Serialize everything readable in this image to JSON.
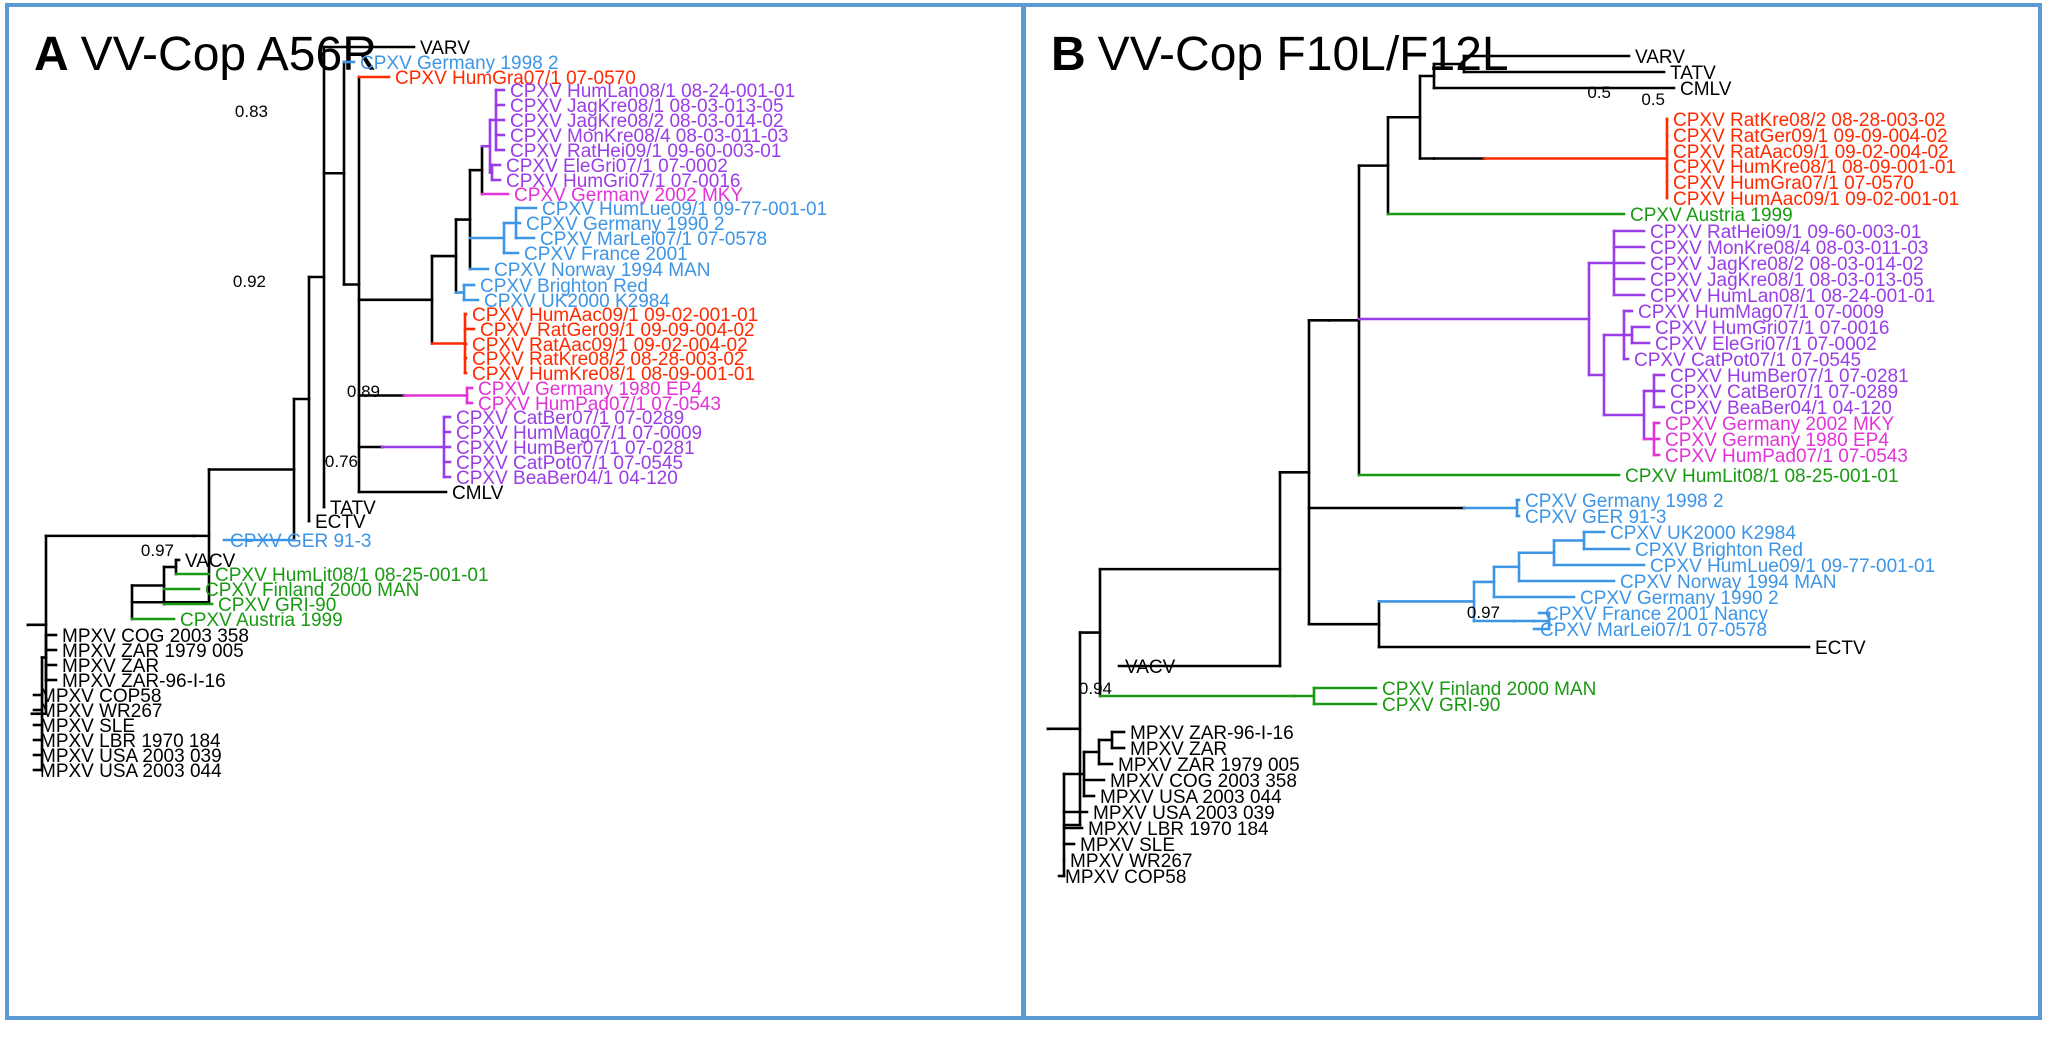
{
  "colors": {
    "black": "#000000",
    "red": "#ff2a00",
    "purple": "#9b3de6",
    "magenta": "#e233d8",
    "blue": "#3d95e6",
    "green": "#1a9a13",
    "frame": "#5b9bd5"
  },
  "panel_a": {
    "letter": "A",
    "title": "VV-Cop A56R",
    "leaves": [
      {
        "label": "VARV",
        "color": "black"
      },
      {
        "label": "CPXV Germany 1998 2",
        "color": "blue"
      },
      {
        "label": "CPXV HumGra07/1 07-0570",
        "color": "red"
      },
      {
        "label": "CPXV HumLan08/1 08-24-001-01",
        "color": "purple"
      },
      {
        "label": "CPXV JagKre08/1 08-03-013-05",
        "color": "purple"
      },
      {
        "label": "CPXV JagKre08/2 08-03-014-02",
        "color": "purple"
      },
      {
        "label": "CPXV MonKre08/4 08-03-011-03",
        "color": "purple"
      },
      {
        "label": "CPXV RatHei09/1 09-60-003-01",
        "color": "purple"
      },
      {
        "label": "CPXV EleGri07/1 07-0002",
        "color": "purple"
      },
      {
        "label": "CPXV HumGri07/1 07-0016",
        "color": "purple"
      },
      {
        "label": "CPXV Germany 2002 MKY",
        "color": "magenta"
      },
      {
        "label": "CPXV HumLue09/1 09-77-001-01",
        "color": "blue"
      },
      {
        "label": "CPXV Germany 1990 2",
        "color": "blue"
      },
      {
        "label": "CPXV MarLei07/1 07-0578",
        "color": "blue"
      },
      {
        "label": "CPXV France 2001",
        "color": "blue"
      },
      {
        "label": "CPXV Norway 1994 MAN",
        "color": "blue"
      },
      {
        "label": "CPXV Brighton Red",
        "color": "blue"
      },
      {
        "label": "CPXV UK2000 K2984",
        "color": "blue"
      },
      {
        "label": "CPXV HumAac09/1 09-02-001-01",
        "color": "red"
      },
      {
        "label": "CPXV RatGer09/1 09-09-004-02",
        "color": "red"
      },
      {
        "label": "CPXV RatAac09/1 09-02-004-02",
        "color": "red"
      },
      {
        "label": "CPXV RatKre08/2 08-28-003-02",
        "color": "red"
      },
      {
        "label": "CPXV HumKre08/1 08-09-001-01",
        "color": "red"
      },
      {
        "label": "CPXV Germany 1980 EP4",
        "color": "magenta"
      },
      {
        "label": "CPXV HumPad07/1 07-0543",
        "color": "magenta"
      },
      {
        "label": "CPXV CatBer07/1 07-0289",
        "color": "purple"
      },
      {
        "label": "CPXV HumMag07/1 07-0009",
        "color": "purple"
      },
      {
        "label": "CPXV HumBer07/1 07-0281",
        "color": "purple"
      },
      {
        "label": "CPXV CatPot07/1 07-0545",
        "color": "purple"
      },
      {
        "label": "CPXV BeaBer04/1 04-120",
        "color": "purple"
      },
      {
        "label": "CMLV",
        "color": "black"
      },
      {
        "label": "TATV",
        "color": "black"
      },
      {
        "label": "ECTV",
        "color": "black"
      },
      {
        "label": "CPXV GER 91-3",
        "color": "blue"
      },
      {
        "label": "VACV",
        "color": "black"
      },
      {
        "label": "CPXV HumLit08/1 08-25-001-01",
        "color": "green"
      },
      {
        "label": "CPXV Finland 2000 MAN",
        "color": "green"
      },
      {
        "label": "CPXV GRI-90",
        "color": "green"
      },
      {
        "label": "CPXV Austria 1999",
        "color": "green"
      },
      {
        "label": "MPXV COG 2003 358",
        "color": "black"
      },
      {
        "label": "MPXV ZAR 1979 005",
        "color": "black"
      },
      {
        "label": "MPXV ZAR",
        "color": "black"
      },
      {
        "label": "MPXV ZAR-96-I-16",
        "color": "black"
      },
      {
        "label": "MPXV COP58",
        "color": "black"
      },
      {
        "label": "MPXV WR267",
        "color": "black"
      },
      {
        "label": "MPXV SLE",
        "color": "black"
      },
      {
        "label": "MPXV LBR 1970 184",
        "color": "black"
      },
      {
        "label": "MPXV USA 2003 039",
        "color": "black"
      },
      {
        "label": "MPXV USA 2003 044",
        "color": "black"
      }
    ],
    "support_values": [
      "0.83",
      "0.92",
      "0.89",
      "0.76",
      "0.97"
    ]
  },
  "panel_b": {
    "letter": "B",
    "title": "VV-Cop F10L/F12L",
    "leaves": [
      {
        "label": "VARV",
        "color": "black"
      },
      {
        "label": "TATV",
        "color": "black"
      },
      {
        "label": "CMLV",
        "color": "black"
      },
      {
        "label": "CPXV RatKre08/2 08-28-003-02",
        "color": "red"
      },
      {
        "label": "CPXV RatGer09/1 09-09-004-02",
        "color": "red"
      },
      {
        "label": "CPXV RatAac09/1 09-02-004-02",
        "color": "red"
      },
      {
        "label": "CPXV HumKre08/1 08-09-001-01",
        "color": "red"
      },
      {
        "label": "CPXV HumGra07/1 07-0570",
        "color": "red"
      },
      {
        "label": "CPXV HumAac09/1 09-02-001-01",
        "color": "red"
      },
      {
        "label": "CPXV Austria 1999",
        "color": "green"
      },
      {
        "label": "CPXV RatHei09/1 09-60-003-01",
        "color": "purple"
      },
      {
        "label": "CPXV MonKre08/4 08-03-011-03",
        "color": "purple"
      },
      {
        "label": "CPXV JagKre08/2 08-03-014-02",
        "color": "purple"
      },
      {
        "label": "CPXV JagKre08/1 08-03-013-05",
        "color": "purple"
      },
      {
        "label": "CPXV HumLan08/1 08-24-001-01",
        "color": "purple"
      },
      {
        "label": "CPXV HumMag07/1 07-0009",
        "color": "purple"
      },
      {
        "label": "CPXV HumGri07/1 07-0016",
        "color": "purple"
      },
      {
        "label": "CPXV EleGri07/1 07-0002",
        "color": "purple"
      },
      {
        "label": "CPXV CatPot07/1 07-0545",
        "color": "purple"
      },
      {
        "label": "CPXV HumBer07/1 07-0281",
        "color": "purple"
      },
      {
        "label": "CPXV CatBer07/1 07-0289",
        "color": "purple"
      },
      {
        "label": "CPXV BeaBer04/1 04-120",
        "color": "purple"
      },
      {
        "label": "CPXV Germany 2002 MKY",
        "color": "magenta"
      },
      {
        "label": "CPXV Germany 1980 EP4",
        "color": "magenta"
      },
      {
        "label": "CPXV HumPad07/1 07-0543",
        "color": "magenta"
      },
      {
        "label": "CPXV HumLit08/1 08-25-001-01",
        "color": "green"
      },
      {
        "label": "CPXV Germany 1998 2",
        "color": "blue"
      },
      {
        "label": "CPXV GER 91-3",
        "color": "blue"
      },
      {
        "label": "CPXV UK2000 K2984",
        "color": "blue"
      },
      {
        "label": "CPXV Brighton Red",
        "color": "blue"
      },
      {
        "label": "CPXV HumLue09/1 09-77-001-01",
        "color": "blue"
      },
      {
        "label": "CPXV Norway 1994 MAN",
        "color": "blue"
      },
      {
        "label": "CPXV Germany 1990 2",
        "color": "blue"
      },
      {
        "label": "CPXV France 2001 Nancy",
        "color": "blue"
      },
      {
        "label": "CPXV MarLei07/1 07-0578",
        "color": "blue"
      },
      {
        "label": "ECTV",
        "color": "black"
      },
      {
        "label": "VACV",
        "color": "black"
      },
      {
        "label": "CPXV Finland 2000 MAN",
        "color": "green"
      },
      {
        "label": "CPXV GRI-90",
        "color": "green"
      },
      {
        "label": "MPXV ZAR-96-I-16",
        "color": "black"
      },
      {
        "label": "MPXV ZAR",
        "color": "black"
      },
      {
        "label": "MPXV ZAR 1979 005",
        "color": "black"
      },
      {
        "label": "MPXV COG 2003 358",
        "color": "black"
      },
      {
        "label": "MPXV USA 2003 044",
        "color": "black"
      },
      {
        "label": "MPXV USA 2003 039",
        "color": "black"
      },
      {
        "label": "MPXV LBR 1970 184",
        "color": "black"
      },
      {
        "label": "MPXV SLE",
        "color": "black"
      },
      {
        "label": "MPXV WR267",
        "color": "black"
      },
      {
        "label": "MPXV COP58",
        "color": "black"
      }
    ],
    "support_values": [
      "0.5",
      "0.5",
      "0.97",
      "0.94"
    ]
  }
}
